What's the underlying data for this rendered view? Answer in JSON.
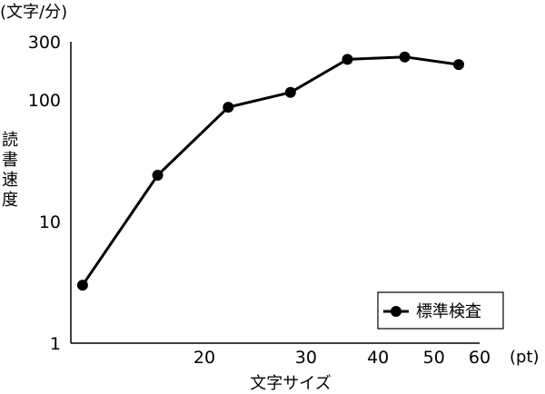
{
  "chart_data": {
    "type": "line",
    "title": "",
    "y_unit_label": "(文字/分)",
    "ylabel": "読書速度",
    "xlabel": "文字サイズ",
    "x_unit_label": "(pt)",
    "y_scale": "log",
    "ylim": [
      1,
      300
    ],
    "y_ticks": [
      {
        "value": 1,
        "label": "1"
      },
      {
        "value": 10,
        "label": "10"
      },
      {
        "value": 100,
        "label": "100"
      },
      {
        "value": 300,
        "label": "300"
      }
    ],
    "x_scale": "log",
    "xlim": [
      10,
      60
    ],
    "x_ticks": [
      {
        "value": 20,
        "label": "20"
      },
      {
        "value": 30,
        "label": "30"
      },
      {
        "value": 40,
        "label": "40"
      },
      {
        "value": 50,
        "label": "50"
      },
      {
        "value": 60,
        "label": "60"
      }
    ],
    "grid": false,
    "legend_position": "bottom-right",
    "series": [
      {
        "name": "標準検査",
        "color": "#000000",
        "marker": "circle",
        "x": [
          12.3,
          16.6,
          22.0,
          28.2,
          35.4,
          44.5,
          55.2
        ],
        "y": [
          3.0,
          24.0,
          87.0,
          115.0,
          215.0,
          225.0,
          195.0
        ]
      }
    ]
  }
}
